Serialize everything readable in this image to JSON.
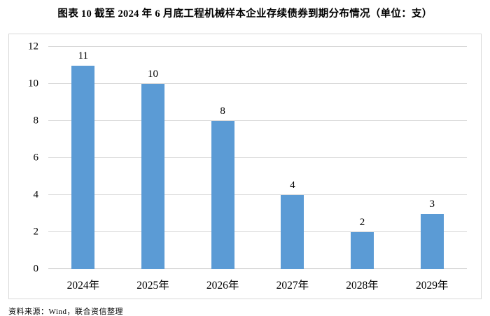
{
  "figure": {
    "title": "图表 10  截至 2024 年 6 月底工程机械样本企业存续债券到期分布情况（单位：支）",
    "source": "资料来源：Wind，联合资信整理"
  },
  "chart_data": {
    "type": "bar",
    "categories": [
      "2024年",
      "2025年",
      "2026年",
      "2027年",
      "2028年",
      "2029年"
    ],
    "values": [
      11,
      10,
      8,
      4,
      2,
      3
    ],
    "title": "截至 2024 年 6 月底工程机械样本企业存续债券到期分布情况",
    "unit": "支",
    "xlabel": "",
    "ylabel": "",
    "ylim": [
      0,
      12
    ],
    "ytick_interval": 2,
    "yticks": [
      0,
      2,
      4,
      6,
      8,
      10,
      12
    ],
    "grid": true,
    "legend": "none",
    "data_labels": true,
    "colors": {
      "bar": "#5b9bd5",
      "gridline": "#d9d9d9",
      "axis_line": "#bfbfbf",
      "chart_border": "#d8d8d8",
      "text": "#000000"
    }
  }
}
